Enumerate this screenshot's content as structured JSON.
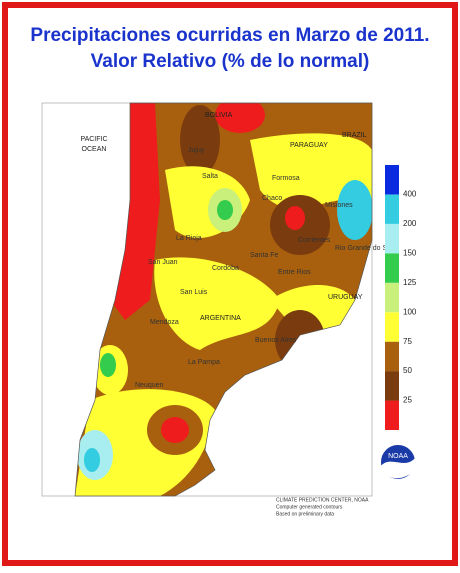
{
  "header": {
    "title_line1": "Precipitaciones ocurridas en Marzo de 2011.",
    "title_line2": "Valor Relativo (% de lo normal)"
  },
  "map": {
    "labels": {
      "ocean_line1": "PACIFIC",
      "ocean_line2": "OCEAN",
      "bolivia": "BOLIVIA",
      "paraguay": "PARAGUAY",
      "brazil": "BRAZIL",
      "argentina": "ARGENTINA",
      "uruguay": "URUGUAY",
      "salta": "Salta",
      "jujuy": "Jujuy",
      "formosa": "Formosa",
      "chaco": "Chaco",
      "corrientes": "Corrientes",
      "misiones": "Misiones",
      "rio_grande": "Rio Grande do Sul",
      "santa_fe": "Santa Fe",
      "entre_rios": "Entre Rios",
      "cordoba": "Cordoba",
      "san_luis": "San Luis",
      "san_juan": "San Juan",
      "la_rioja": "La Rioja",
      "mendoza": "Mendoza",
      "la_pampa": "La Pampa",
      "buenos_aires": "Buenos Aires",
      "neuquen": "Neuquen"
    }
  },
  "legend": {
    "ticks": [
      25,
      50,
      75,
      100,
      125,
      150,
      200,
      400
    ],
    "colors": [
      "#ee1c1c",
      "#7a3b0e",
      "#a8600f",
      "#ffff33",
      "#c8f07a",
      "#33cc4c",
      "#a8eef0",
      "#33cce0",
      "#0a2ae0"
    ]
  },
  "footer": {
    "line1": "CLIMATE PREDICTION CENTER, NOAA",
    "line2": "Computer generated contours",
    "line3": "Based on preliminary data",
    "logo": "NOAA"
  }
}
